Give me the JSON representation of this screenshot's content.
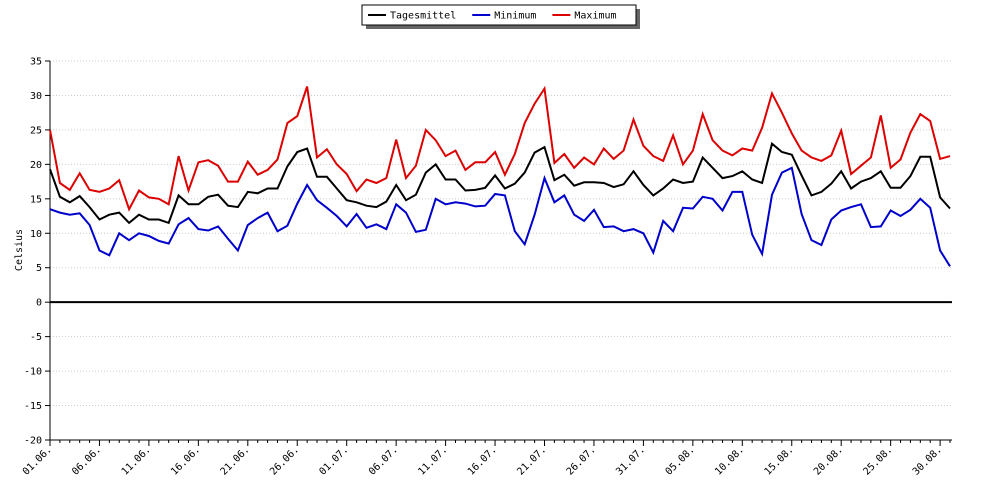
{
  "chart_data": {
    "type": "line",
    "y_label": "Celsius",
    "categories": [
      "01.06.",
      null,
      null,
      null,
      null,
      "06.06.",
      null,
      null,
      null,
      null,
      "11.06.",
      null,
      null,
      null,
      null,
      "16.06.",
      null,
      null,
      null,
      null,
      "21.06.",
      null,
      null,
      null,
      null,
      "26.06.",
      null,
      null,
      null,
      null,
      "01.07.",
      null,
      null,
      null,
      null,
      "06.07.",
      null,
      null,
      null,
      null,
      "11.07.",
      null,
      null,
      null,
      null,
      "16.07.",
      null,
      null,
      null,
      null,
      "21.07.",
      null,
      null,
      null,
      null,
      "26.07.",
      null,
      null,
      null,
      null,
      "31.07.",
      null,
      null,
      null,
      null,
      "05.08.",
      null,
      null,
      null,
      null,
      "10.08.",
      null,
      null,
      null,
      null,
      "15.08.",
      null,
      null,
      null,
      null,
      "20.08.",
      null,
      null,
      null,
      null,
      "25.08.",
      null,
      null,
      null,
      null,
      "30.08.",
      null
    ],
    "series": [
      {
        "name": "Tagesmittel",
        "color": "#000000",
        "values": [
          19.3,
          15.3,
          14.5,
          15.4,
          13.8,
          12,
          12.7,
          13,
          11.5,
          12.7,
          12,
          12,
          11.5,
          15.5,
          14.2,
          14.2,
          15.3,
          15.6,
          14,
          13.8,
          16,
          15.8,
          16.5,
          16.5,
          19.7,
          21.8,
          22.3,
          18.2,
          18.2,
          16.5,
          14.8,
          14.5,
          14,
          13.8,
          14.6,
          17,
          14.8,
          15.6,
          18.8,
          20,
          17.8,
          17.8,
          16.2,
          16.3,
          16.6,
          18.4,
          16.5,
          17.2,
          18.8,
          21.7,
          22.5,
          17.7,
          18.5,
          16.9,
          17.4,
          17.4,
          17.3,
          16.7,
          17.1,
          19,
          17,
          15.5,
          16.5,
          17.8,
          17.3,
          17.5,
          21,
          19.5,
          18,
          18.3,
          19,
          17.8,
          17.3,
          23,
          21.8,
          21.4,
          18.4,
          15.5,
          16,
          17.2,
          19,
          16.5,
          17.5,
          18,
          19,
          16.6,
          16.6,
          18.3,
          21.1,
          21.1,
          15.2,
          13.6
        ]
      },
      {
        "name": "Minimum",
        "color": "#0000cc",
        "values": [
          13.5,
          13,
          12.7,
          12.9,
          11.2,
          7.5,
          6.8,
          10,
          9,
          10,
          9.6,
          8.9,
          8.5,
          11.3,
          12.2,
          10.6,
          10.4,
          11,
          9.2,
          7.5,
          11.2,
          12.2,
          13,
          10.3,
          11.1,
          14.3,
          17,
          14.8,
          13.7,
          12.5,
          11,
          12.8,
          10.8,
          11.3,
          10.6,
          14.2,
          13,
          10.2,
          10.5,
          15,
          14.2,
          14.5,
          14.3,
          13.9,
          14,
          15.7,
          15.5,
          10.3,
          8.4,
          12.7,
          18,
          14.5,
          15.5,
          12.7,
          11.8,
          13.4,
          10.9,
          11,
          10.3,
          10.6,
          10,
          7.2,
          11.8,
          10.3,
          13.7,
          13.6,
          15.3,
          15,
          13.3,
          16,
          16,
          9.8,
          7,
          15.6,
          18.8,
          19.5,
          12.8,
          9,
          8.3,
          12,
          13.3,
          13.8,
          14.2,
          10.9,
          11,
          13.3,
          12.5,
          13.4,
          15,
          13.7,
          7.5,
          5.2
        ]
      },
      {
        "name": "Maximum",
        "color": "#dd0000",
        "values": [
          25,
          17.3,
          16.3,
          18.7,
          16.3,
          16,
          16.5,
          17.7,
          13.5,
          16.2,
          15.2,
          15,
          14.2,
          21.2,
          16.2,
          20.3,
          20.6,
          19.8,
          17.5,
          17.5,
          20.4,
          18.5,
          19.2,
          20.7,
          26,
          27,
          31.3,
          21,
          22.2,
          20,
          18.6,
          16.1,
          17.8,
          17.3,
          18,
          23.6,
          18,
          19.8,
          25,
          23.5,
          21.2,
          22,
          19.2,
          20.3,
          20.3,
          21.8,
          18.5,
          21.5,
          26,
          28.8,
          31,
          20.2,
          21.5,
          19.5,
          21,
          20,
          22.3,
          20.8,
          22,
          26.5,
          22.7,
          21.2,
          20.5,
          24.2,
          20,
          22,
          27.3,
          23.5,
          22,
          21.3,
          22.3,
          22,
          25.3,
          30.3,
          27.5,
          24.5,
          22,
          21,
          20.5,
          21.3,
          24.9,
          18.6,
          19.8,
          21,
          27.1,
          19.5,
          20.7,
          24.6,
          27.3,
          26.3,
          20.8,
          21.2
        ]
      }
    ],
    "ylim": [
      -20,
      35
    ],
    "yticks": [
      -20,
      -15,
      -10,
      -5,
      0,
      5,
      10,
      15,
      20,
      25,
      30,
      35
    ],
    "grid": true,
    "legend": "top"
  }
}
